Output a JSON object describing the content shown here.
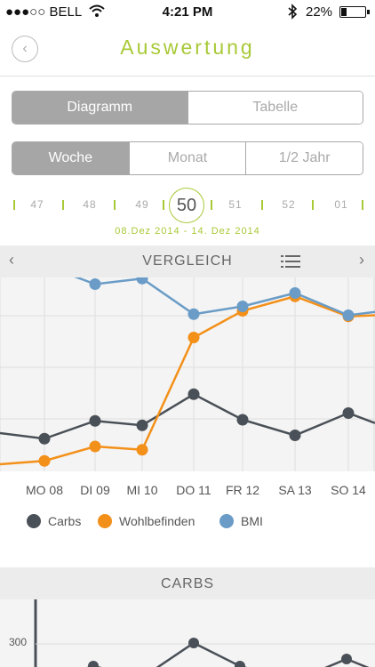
{
  "status": {
    "carrier": "●●●○○ BELL",
    "time": "4:21 PM",
    "battery": "22%",
    "battery_level": 0.22
  },
  "header": {
    "title": "Auswertung",
    "back_icon": "chevron-left-icon"
  },
  "view_tabs": [
    {
      "label": "Diagramm",
      "active": true
    },
    {
      "label": "Tabelle",
      "active": false
    }
  ],
  "period_tabs": [
    {
      "label": "Woche",
      "active": true
    },
    {
      "label": "Monat",
      "active": false
    },
    {
      "label": "1/2 Jahr",
      "active": false
    }
  ],
  "weeks": {
    "items": [
      "47",
      "48",
      "49",
      "50",
      "51",
      "52",
      "01"
    ],
    "selected": "50",
    "range": "08.Dez 2014 - 14. Dez 2014"
  },
  "comparison": {
    "title": "VERGLEICH",
    "prev_icon": "chevron-left-icon",
    "next_icon": "chevron-right-icon",
    "menu_icon": "list-icon"
  },
  "colors": {
    "accent": "#a8c937",
    "carbs": "#4a5057",
    "wohlbefinden": "#f39019",
    "bmi": "#6a9cc7"
  },
  "chart_data": {
    "type": "line",
    "categories": [
      "MO 08",
      "DI 09",
      "MI 10",
      "DO 11",
      "FR 12",
      "SA 13",
      "SO 14"
    ],
    "series": [
      {
        "name": "Carbs",
        "values": [
          0.27,
          0.43,
          0.39,
          0.67,
          0.44,
          0.3,
          0.5
        ]
      },
      {
        "name": "Wohlbefinden",
        "values": [
          0.07,
          0.2,
          0.17,
          1.18,
          1.42,
          1.55,
          1.37
        ]
      },
      {
        "name": "BMI",
        "values": [
          1.83,
          1.66,
          1.71,
          1.39,
          1.46,
          1.58,
          1.38
        ]
      }
    ],
    "grid": true,
    "legend": "bottom"
  },
  "carbs_section": {
    "title": "CARBS",
    "y_tick": "300"
  }
}
